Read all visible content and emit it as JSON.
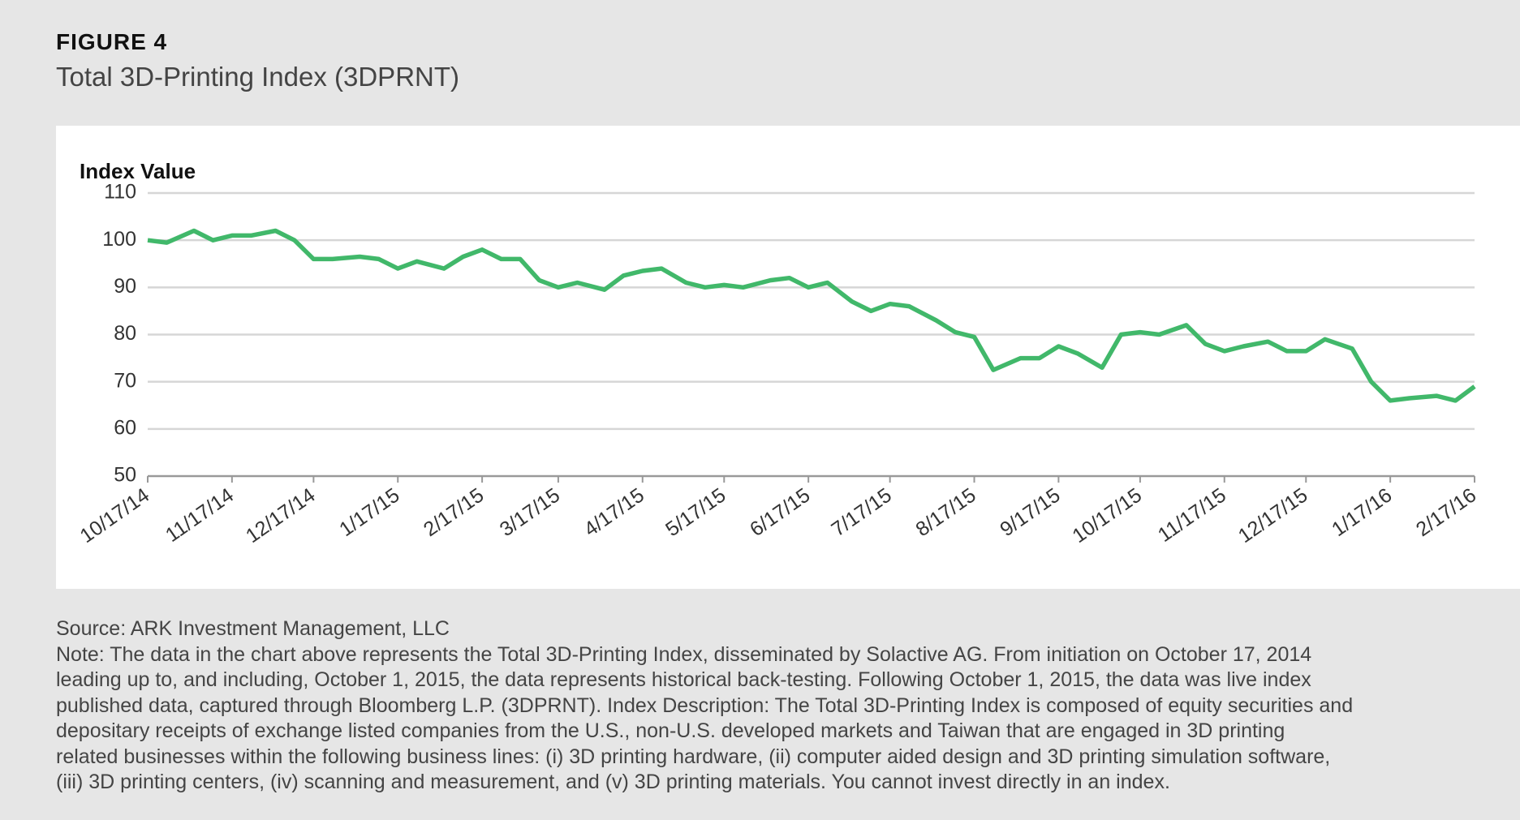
{
  "header": {
    "figure": "FIGURE 4",
    "title": "Total 3D-Printing Index (3DPRNT)"
  },
  "chart_data": {
    "type": "line",
    "y_label": "Index Value",
    "x": [
      "10/17/14",
      "10/24/14",
      "11/3/14",
      "11/10/14",
      "11/17/14",
      "11/24/14",
      "12/3/14",
      "12/10/14",
      "12/17/14",
      "12/24/14",
      "1/3/15",
      "1/10/15",
      "1/17/15",
      "1/24/15",
      "2/3/15",
      "2/10/15",
      "2/17/15",
      "2/24/15",
      "3/3/15",
      "3/10/15",
      "3/17/15",
      "3/24/15",
      "4/3/15",
      "4/10/15",
      "4/17/15",
      "4/24/15",
      "5/3/15",
      "5/10/15",
      "5/17/15",
      "5/24/15",
      "6/3/15",
      "6/10/15",
      "6/17/15",
      "6/24/15",
      "7/3/15",
      "7/10/15",
      "7/17/15",
      "7/24/15",
      "8/3/15",
      "8/10/15",
      "8/17/15",
      "8/24/15",
      "9/3/15",
      "9/10/15",
      "9/17/15",
      "9/24/15",
      "10/3/15",
      "10/10/15",
      "10/17/15",
      "10/24/15",
      "11/3/15",
      "11/10/15",
      "11/17/15",
      "11/24/15",
      "12/3/15",
      "12/10/15",
      "12/17/15",
      "12/24/15",
      "1/3/16",
      "1/10/16",
      "1/17/16",
      "1/24/16",
      "2/3/16",
      "2/10/16",
      "2/17/16"
    ],
    "series": [
      {
        "name": "3DPRNT",
        "color": "#41b86a",
        "values": [
          100,
          99.5,
          102,
          100,
          101,
          101,
          102,
          100,
          96,
          96,
          96.5,
          96,
          94,
          95.5,
          94,
          96.5,
          98,
          96,
          96,
          91.5,
          90,
          91,
          89.5,
          92.5,
          93.5,
          94,
          91,
          90,
          90.5,
          90,
          91.5,
          92,
          90,
          91,
          87,
          85,
          86.5,
          86,
          83,
          80.5,
          79.5,
          72.5,
          75,
          75,
          77.5,
          76,
          73,
          80,
          80.5,
          80,
          82,
          78,
          76.5,
          77.5,
          78.5,
          76.5,
          76.5,
          79,
          77,
          70,
          66,
          66.5,
          67,
          66,
          69
        ]
      }
    ],
    "xticks": [
      "10/17/14",
      "11/17/14",
      "12/17/14",
      "1/17/15",
      "2/17/15",
      "3/17/15",
      "4/17/15",
      "5/17/15",
      "6/17/15",
      "7/17/15",
      "8/17/15",
      "9/17/15",
      "10/17/15",
      "11/17/15",
      "12/17/15",
      "1/17/16",
      "2/17/16"
    ],
    "ylim": [
      50,
      110
    ],
    "yticks": [
      50,
      60,
      70,
      80,
      90,
      100,
      110
    ],
    "grid": true
  },
  "footer": {
    "lines": [
      "Source: ARK Investment Management, LLC",
      "Note: The data in the chart above represents the Total 3D-Printing Index, disseminated by Solactive AG. From initiation on October 17, 2014",
      "leading up to, and including, October 1, 2015, the data represents historical back-testing. Following October 1, 2015, the data was live index",
      "published data, captured through Bloomberg L.P. (3DPRNT). Index Description:  The Total 3D-Printing Index is composed of equity securities and",
      "depositary receipts of exchange listed companies from the U.S., non-U.S. developed markets and Taiwan that are engaged in 3D printing",
      "related businesses within the following business lines: (i) 3D printing hardware, (ii) computer aided design and 3D printing simulation software,",
      "(iii) 3D printing centers, (iv) scanning and measurement, and (v) 3D printing materials. You cannot invest directly in an index."
    ]
  }
}
